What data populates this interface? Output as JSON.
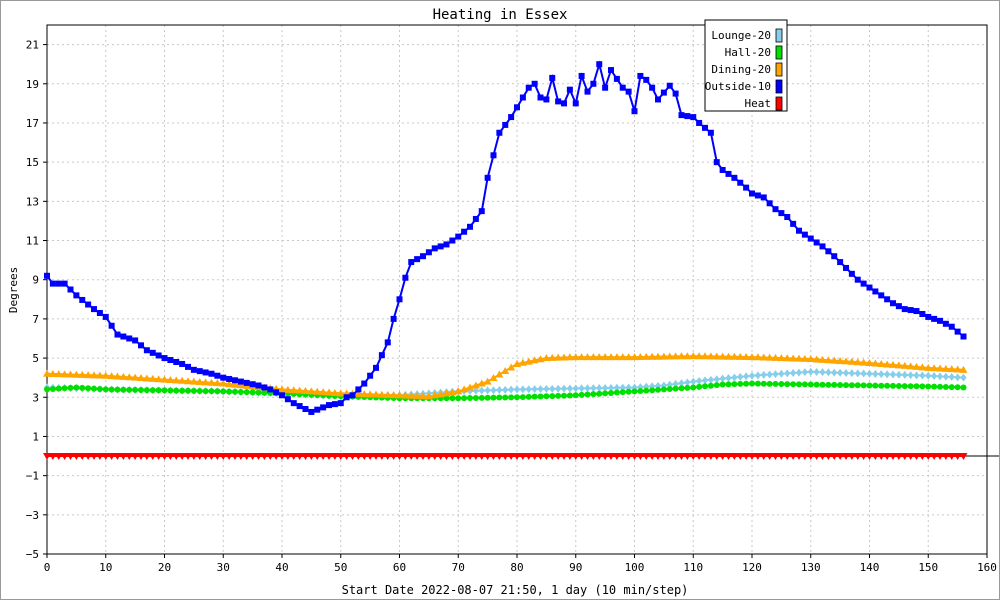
{
  "chart_data": {
    "type": "line",
    "title": "Heating in Essex",
    "xlabel": "Start Date 2022-08-07 21:50, 1 day (10 min/step)",
    "ylabel": "Degrees",
    "xlim": [
      0,
      160
    ],
    "ylim": [
      -5,
      22
    ],
    "x_ticks": [
      0,
      10,
      20,
      30,
      40,
      50,
      60,
      70,
      80,
      90,
      100,
      110,
      120,
      130,
      140,
      150,
      160
    ],
    "y_ticks": [
      -5,
      -3,
      -1,
      1,
      3,
      5,
      7,
      9,
      11,
      13,
      15,
      17,
      19,
      21
    ],
    "grid": true,
    "legend_position": "top-right",
    "series": [
      {
        "name": "Lounge-20",
        "color": "#87ceeb",
        "marker": "diamond",
        "points": [
          [
            0,
            3.5
          ],
          [
            10,
            3.4
          ],
          [
            20,
            3.35
          ],
          [
            30,
            3.3
          ],
          [
            40,
            3.2
          ],
          [
            50,
            3.05
          ],
          [
            60,
            3.1
          ],
          [
            65,
            3.2
          ],
          [
            70,
            3.3
          ],
          [
            80,
            3.4
          ],
          [
            90,
            3.45
          ],
          [
            100,
            3.5
          ],
          [
            105,
            3.6
          ],
          [
            110,
            3.8
          ],
          [
            120,
            4.1
          ],
          [
            125,
            4.2
          ],
          [
            130,
            4.3
          ],
          [
            140,
            4.2
          ],
          [
            150,
            4.1
          ],
          [
            156,
            4.0
          ]
        ]
      },
      {
        "name": "Hall-20",
        "color": "#00e000",
        "marker": "circle",
        "points": [
          [
            0,
            3.4
          ],
          [
            5,
            3.5
          ],
          [
            10,
            3.4
          ],
          [
            20,
            3.35
          ],
          [
            30,
            3.3
          ],
          [
            40,
            3.2
          ],
          [
            50,
            3.05
          ],
          [
            60,
            2.95
          ],
          [
            70,
            2.95
          ],
          [
            80,
            3.0
          ],
          [
            90,
            3.1
          ],
          [
            100,
            3.3
          ],
          [
            110,
            3.5
          ],
          [
            115,
            3.65
          ],
          [
            120,
            3.7
          ],
          [
            130,
            3.65
          ],
          [
            140,
            3.6
          ],
          [
            150,
            3.55
          ],
          [
            156,
            3.5
          ]
        ]
      },
      {
        "name": "Dining-20",
        "color": "#ffa500",
        "marker": "triangle",
        "points": [
          [
            0,
            4.2
          ],
          [
            10,
            4.1
          ],
          [
            20,
            3.9
          ],
          [
            30,
            3.7
          ],
          [
            40,
            3.4
          ],
          [
            50,
            3.2
          ],
          [
            60,
            3.1
          ],
          [
            65,
            3.05
          ],
          [
            70,
            3.3
          ],
          [
            75,
            3.8
          ],
          [
            80,
            4.7
          ],
          [
            85,
            5.0
          ],
          [
            90,
            5.05
          ],
          [
            100,
            5.05
          ],
          [
            110,
            5.1
          ],
          [
            120,
            5.05
          ],
          [
            130,
            4.95
          ],
          [
            140,
            4.75
          ],
          [
            150,
            4.5
          ],
          [
            156,
            4.4
          ]
        ]
      },
      {
        "name": "Outside-10",
        "color": "#0000ff",
        "marker": "square",
        "points": [
          [
            0,
            9.2
          ],
          [
            1,
            8.8
          ],
          [
            3,
            8.8
          ],
          [
            5,
            8.2
          ],
          [
            8,
            7.5
          ],
          [
            10,
            7.1
          ],
          [
            12,
            6.2
          ],
          [
            15,
            5.9
          ],
          [
            17,
            5.4
          ],
          [
            20,
            5.0
          ],
          [
            23,
            4.7
          ],
          [
            25,
            4.4
          ],
          [
            28,
            4.2
          ],
          [
            30,
            4.0
          ],
          [
            33,
            3.8
          ],
          [
            36,
            3.6
          ],
          [
            38,
            3.4
          ],
          [
            40,
            3.1
          ],
          [
            42,
            2.7
          ],
          [
            44,
            2.4
          ],
          [
            45,
            2.25
          ],
          [
            48,
            2.6
          ],
          [
            50,
            2.7
          ],
          [
            51,
            3.0
          ],
          [
            52,
            3.1
          ],
          [
            54,
            3.7
          ],
          [
            56,
            4.5
          ],
          [
            58,
            5.8
          ],
          [
            59,
            7.0
          ],
          [
            60,
            8.0
          ],
          [
            61,
            9.1
          ],
          [
            62,
            9.9
          ],
          [
            64,
            10.2
          ],
          [
            66,
            10.6
          ],
          [
            68,
            10.8
          ],
          [
            70,
            11.2
          ],
          [
            72,
            11.7
          ],
          [
            74,
            12.5
          ],
          [
            75,
            14.2
          ],
          [
            77,
            16.5
          ],
          [
            79,
            17.3
          ],
          [
            80,
            17.8
          ],
          [
            82,
            18.8
          ],
          [
            83,
            19.0
          ],
          [
            84,
            18.3
          ],
          [
            85,
            18.2
          ],
          [
            86,
            19.3
          ],
          [
            87,
            18.1
          ],
          [
            88,
            18.0
          ],
          [
            89,
            18.7
          ],
          [
            90,
            18.0
          ],
          [
            91,
            19.4
          ],
          [
            92,
            18.6
          ],
          [
            93,
            19.0
          ],
          [
            94,
            20.0
          ],
          [
            95,
            18.8
          ],
          [
            96,
            19.7
          ],
          [
            98,
            18.8
          ],
          [
            99,
            18.6
          ],
          [
            100,
            17.6
          ],
          [
            101,
            19.4
          ],
          [
            102,
            19.2
          ],
          [
            103,
            18.8
          ],
          [
            104,
            18.2
          ],
          [
            106,
            18.9
          ],
          [
            107,
            18.5
          ],
          [
            108,
            17.4
          ],
          [
            110,
            17.3
          ],
          [
            111,
            17.0
          ],
          [
            113,
            16.5
          ],
          [
            114,
            15.0
          ],
          [
            115,
            14.6
          ],
          [
            117,
            14.2
          ],
          [
            119,
            13.7
          ],
          [
            120,
            13.4
          ],
          [
            122,
            13.2
          ],
          [
            124,
            12.6
          ],
          [
            126,
            12.2
          ],
          [
            128,
            11.5
          ],
          [
            130,
            11.1
          ],
          [
            132,
            10.7
          ],
          [
            134,
            10.2
          ],
          [
            136,
            9.6
          ],
          [
            138,
            9.0
          ],
          [
            140,
            8.6
          ],
          [
            142,
            8.2
          ],
          [
            144,
            7.8
          ],
          [
            146,
            7.5
          ],
          [
            148,
            7.4
          ],
          [
            150,
            7.1
          ],
          [
            152,
            6.9
          ],
          [
            154,
            6.6
          ],
          [
            156,
            6.1
          ]
        ]
      },
      {
        "name": "Heat",
        "color": "#ff0000",
        "marker": "triangle-down",
        "points": [
          [
            0,
            0
          ],
          [
            156,
            0
          ]
        ]
      }
    ]
  }
}
